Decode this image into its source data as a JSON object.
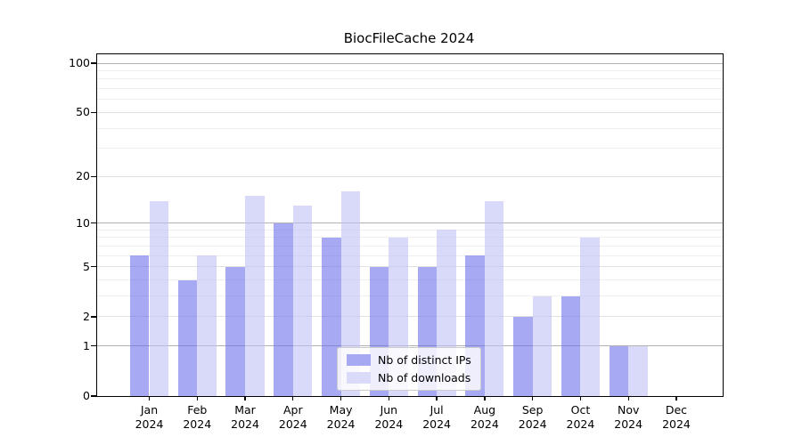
{
  "chart_data": {
    "type": "bar",
    "title": "BiocFileCache 2024",
    "categories": [
      "Jan",
      "Feb",
      "Mar",
      "Apr",
      "May",
      "Jun",
      "Jul",
      "Aug",
      "Sep",
      "Oct",
      "Nov",
      "Dec"
    ],
    "category_year": "2024",
    "series": [
      {
        "name": "Nb of distinct IPs",
        "color": "#a8a9f3",
        "bar_rgba": "rgba(105,107,235,0.58)",
        "values": [
          6,
          4,
          5,
          10,
          8,
          5,
          5,
          6,
          2,
          3,
          1,
          0
        ]
      },
      {
        "name": "Nb of downloads",
        "color": "#dadbf8",
        "bar_rgba": "rgba(190,192,245,0.58)",
        "values": [
          14,
          6,
          15,
          13,
          16,
          8,
          9,
          14,
          3,
          8,
          1,
          0
        ]
      }
    ],
    "yscale": "log1p",
    "ylim": [
      0,
      113
    ],
    "yticks": [
      0,
      1,
      2,
      5,
      10,
      20,
      50,
      100
    ],
    "yticks_minor": [
      3,
      4,
      6,
      7,
      8,
      9,
      30,
      40,
      60,
      70,
      80,
      90
    ],
    "grid": true,
    "legend_position": "lower center",
    "colors": {
      "axis": "#000000",
      "grid_decade": "#b2b2b2",
      "grid_labeled": "#e2e2e2",
      "grid_minor": "#efefef",
      "background": "#ffffff"
    }
  }
}
